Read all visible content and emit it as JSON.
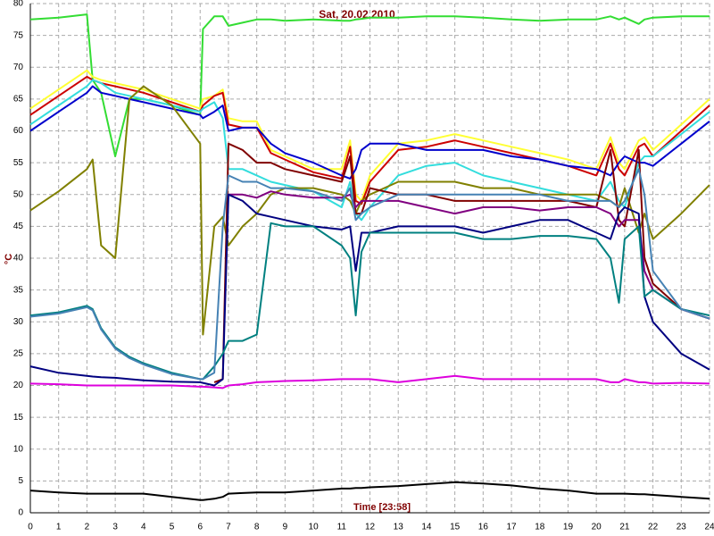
{
  "chart_data": {
    "type": "line",
    "title": "Sat, 20.02.2010",
    "xlabel": "Time [23:58]",
    "ylabel": "°C",
    "x": [
      0,
      1,
      2,
      2.2,
      2.5,
      3,
      3.5,
      4,
      5,
      6,
      6.1,
      6.5,
      6.8,
      7,
      7.5,
      8,
      8.5,
      9,
      10,
      11,
      11.3,
      11.5,
      11.7,
      12,
      13,
      14,
      15,
      16,
      17,
      18,
      19,
      20,
      20.5,
      20.8,
      21,
      21.5,
      21.7,
      22,
      23,
      24
    ],
    "xlim": [
      0,
      24
    ],
    "xticks": [
      0,
      1,
      2,
      3,
      4,
      5,
      6,
      7,
      8,
      9,
      10,
      11,
      12,
      13,
      14,
      15,
      16,
      17,
      18,
      19,
      20,
      21,
      22,
      23,
      24
    ],
    "ylim": [
      0,
      80
    ],
    "yticks": [
      0,
      5,
      10,
      15,
      20,
      25,
      30,
      35,
      40,
      45,
      50,
      55,
      60,
      65,
      70,
      75,
      80
    ],
    "grid": true,
    "series": [
      {
        "color": "#33dd33",
        "values": [
          77.5,
          77.8,
          78.3,
          68,
          66,
          56,
          65,
          65,
          64,
          62.5,
          76,
          78,
          78,
          76.5,
          77,
          77.5,
          77.5,
          77.3,
          77.5,
          77.3,
          77.3,
          77.5,
          77.6,
          77.8,
          77.8,
          78,
          78,
          77.8,
          77.5,
          77.3,
          77.5,
          77.5,
          78,
          77.5,
          77.8,
          76.8,
          77.5,
          77.8,
          78,
          78
        ]
      },
      {
        "color": "#ffff33",
        "values": [
          63.5,
          66.5,
          69.5,
          68.5,
          68,
          67.5,
          67,
          66.5,
          65,
          63.5,
          65,
          65.5,
          66.5,
          62,
          61.5,
          61.5,
          57,
          56,
          54,
          54,
          58.5,
          50,
          49,
          53,
          58,
          58.5,
          59.5,
          58.5,
          57.5,
          56.5,
          55.5,
          54,
          59,
          55,
          54,
          58.5,
          59,
          57,
          61,
          65
        ]
      },
      {
        "color": "#cc0000",
        "values": [
          62.5,
          65.5,
          68.5,
          68,
          67.5,
          67,
          66.5,
          66,
          64.5,
          63,
          64,
          65.5,
          66,
          61,
          60.5,
          60.5,
          56.5,
          55.5,
          53.5,
          52.5,
          57.5,
          49,
          48.5,
          52,
          57,
          57.5,
          58.5,
          57.5,
          56.5,
          55.5,
          54.5,
          53,
          58,
          54,
          53,
          57.5,
          58,
          56,
          60,
          64
        ]
      },
      {
        "color": "#33dddd",
        "values": [
          61,
          64,
          67,
          68,
          67.5,
          66,
          65.5,
          65,
          64,
          63,
          63.5,
          64.5,
          62,
          54,
          54,
          53,
          52,
          51.5,
          50.5,
          48,
          52,
          47,
          46,
          48,
          53,
          54.5,
          55,
          53,
          52,
          51,
          50,
          49,
          52,
          49,
          48,
          55,
          56,
          56,
          59.5,
          63
        ]
      },
      {
        "color": "#0000cc",
        "values": [
          60,
          63,
          66,
          67,
          66,
          65.5,
          65,
          64.5,
          63.5,
          62.5,
          62,
          63,
          64,
          60,
          60.5,
          60.5,
          58,
          56.5,
          55,
          53,
          52.5,
          54,
          57,
          58,
          58,
          57,
          57,
          57,
          56,
          55.5,
          54.5,
          54,
          53,
          55,
          56,
          55,
          55,
          54.5,
          58,
          61.5
        ]
      },
      {
        "color": "#808000",
        "values": [
          47.5,
          50.5,
          54,
          55.5,
          42,
          40,
          65,
          67,
          64,
          58,
          28,
          45,
          46.5,
          42,
          45,
          47,
          50,
          51,
          51,
          50,
          49,
          47,
          49,
          50,
          52,
          52,
          52,
          51,
          51,
          50,
          50,
          50,
          49,
          48,
          51,
          44,
          47,
          43,
          47,
          51.5
        ]
      },
      {
        "color": "#800000",
        "values": [
          null,
          null,
          null,
          null,
          null,
          null,
          null,
          null,
          null,
          null,
          null,
          20.5,
          21,
          58,
          57,
          55,
          55,
          54,
          53,
          52,
          56,
          47,
          47,
          51,
          50,
          50,
          49,
          49,
          49,
          49,
          49,
          48,
          57,
          46,
          45,
          57,
          40,
          36,
          32,
          30.5
        ]
      },
      {
        "color": "#800080",
        "values": [
          null,
          null,
          null,
          null,
          null,
          null,
          null,
          null,
          null,
          null,
          null,
          null,
          null,
          50,
          50,
          49.5,
          50.5,
          50,
          49.5,
          49.5,
          50,
          48,
          49,
          49,
          49,
          48,
          47,
          48,
          48,
          47.5,
          48,
          48,
          47,
          45,
          46,
          46,
          38,
          35,
          32,
          30.5
        ]
      },
      {
        "color": "#000080",
        "values": [
          23,
          22,
          21.5,
          21.4,
          21.3,
          21.2,
          21,
          20.8,
          20.6,
          20.5,
          20.4,
          20,
          21,
          50,
          49,
          47,
          46.5,
          46,
          45,
          44.5,
          45,
          38,
          44,
          44,
          45,
          45,
          45,
          44,
          45,
          46,
          46,
          44,
          43,
          47,
          48,
          47,
          34,
          30,
          25,
          22.5
        ]
      },
      {
        "color": "#008080",
        "values": [
          31,
          31.5,
          32.5,
          32,
          29,
          26,
          24.5,
          23.5,
          22,
          21,
          21,
          23,
          25,
          27,
          27,
          28,
          45.5,
          45,
          45,
          42,
          40,
          31,
          41,
          44,
          44,
          44,
          44,
          43,
          43,
          43.5,
          43.5,
          43,
          40,
          33,
          43,
          45,
          34,
          35,
          32,
          31
        ]
      },
      {
        "color": "#4682b4",
        "values": [
          30.8,
          31.3,
          32.3,
          31.8,
          28.8,
          25.8,
          24.3,
          23.3,
          21.8,
          21,
          21,
          22,
          45,
          53,
          52,
          52,
          51,
          51,
          50.5,
          49,
          51,
          46,
          47,
          48,
          50,
          50,
          50,
          50,
          50,
          50,
          49,
          49,
          49,
          48,
          49,
          54,
          50,
          38,
          32,
          30.5
        ]
      },
      {
        "color": "#dd00dd",
        "values": [
          20.3,
          20.2,
          20,
          20,
          20,
          20,
          20,
          20,
          20,
          19.8,
          19.8,
          19.7,
          19.6,
          20,
          20.2,
          20.5,
          20.6,
          20.7,
          20.8,
          21,
          21,
          21,
          21,
          21,
          20.5,
          21,
          21.5,
          21,
          21,
          21,
          21,
          21,
          20.5,
          20.5,
          21,
          20.5,
          20.5,
          20.3,
          20.4,
          20.3
        ]
      },
      {
        "color": "#000000",
        "values": [
          3.5,
          3.2,
          3,
          3,
          3,
          3,
          3,
          3,
          2.5,
          2,
          2,
          2.2,
          2.5,
          3,
          3.1,
          3.2,
          3.2,
          3.2,
          3.5,
          3.8,
          3.8,
          3.9,
          3.9,
          4,
          4.2,
          4.5,
          4.8,
          4.6,
          4.3,
          3.8,
          3.5,
          3,
          3,
          3,
          3,
          2.9,
          2.9,
          2.8,
          2.5,
          2.2
        ]
      }
    ]
  }
}
